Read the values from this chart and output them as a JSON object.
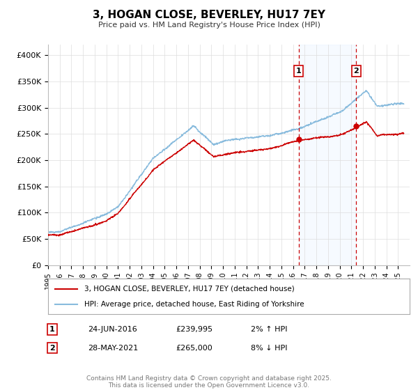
{
  "title": "3, HOGAN CLOSE, BEVERLEY, HU17 7EY",
  "subtitle": "Price paid vs. HM Land Registry's House Price Index (HPI)",
  "yticks": [
    0,
    50000,
    100000,
    150000,
    200000,
    250000,
    300000,
    350000,
    400000
  ],
  "ytick_labels": [
    "£0",
    "£50K",
    "£100K",
    "£150K",
    "£200K",
    "£250K",
    "£300K",
    "£350K",
    "£400K"
  ],
  "ylim": [
    0,
    420000
  ],
  "hpi_color": "#88bbdd",
  "price_color": "#cc0000",
  "marker_color_1": "#cc0000",
  "marker_color_2": "#cc0000",
  "vline_color": "#cc0000",
  "shade_color": "#ddeeff",
  "sale1_year": 2016.48,
  "sale1_price": 239995,
  "sale1_label": "1",
  "sale2_year": 2021.41,
  "sale2_price": 265000,
  "sale2_label": "2",
  "legend_price_label": "3, HOGAN CLOSE, BEVERLEY, HU17 7EY (detached house)",
  "legend_hpi_label": "HPI: Average price, detached house, East Riding of Yorkshire",
  "annotation1_date": "24-JUN-2016",
  "annotation1_price": "£239,995",
  "annotation1_hpi": "2% ↑ HPI",
  "annotation2_date": "28-MAY-2021",
  "annotation2_price": "£265,000",
  "annotation2_hpi": "8% ↓ HPI",
  "footer": "Contains HM Land Registry data © Crown copyright and database right 2025.\nThis data is licensed under the Open Government Licence v3.0.",
  "background_color": "#ffffff",
  "grid_color": "#dddddd",
  "xstart": 1995,
  "xend": 2026
}
